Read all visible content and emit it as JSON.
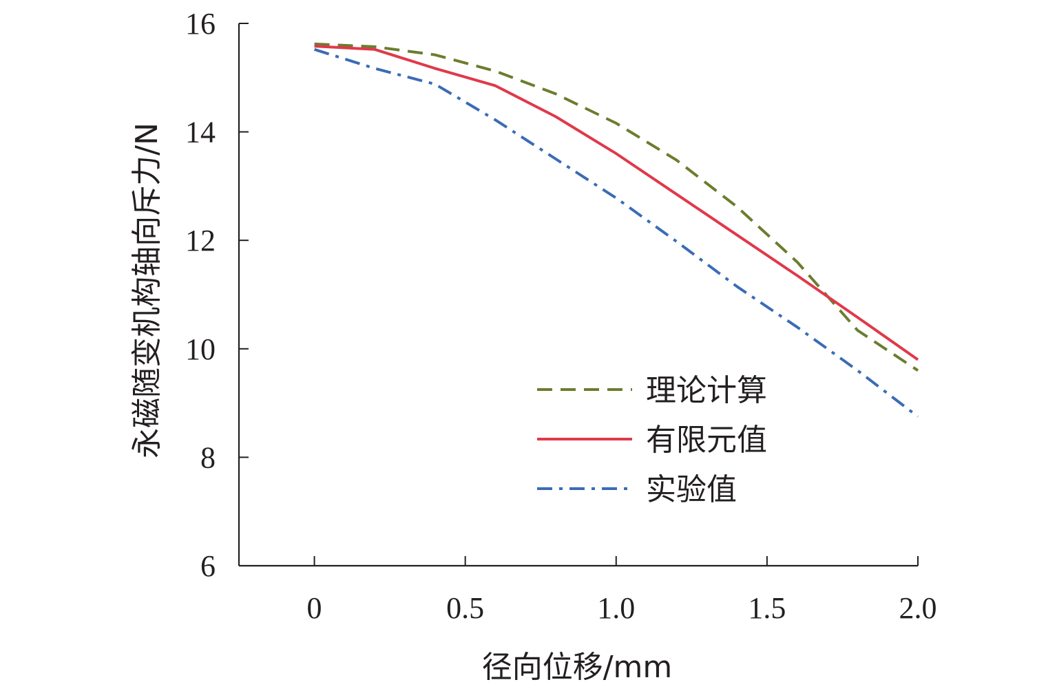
{
  "chart_data": {
    "type": "line",
    "title": "",
    "xlabel": "径向位移/mm",
    "ylabel": "永磁随变机构轴向斥力/N",
    "xlim": [
      -0.25,
      2.0
    ],
    "ylim": [
      6,
      16
    ],
    "xticks": [
      0,
      0.5,
      1.0,
      1.5,
      2.0
    ],
    "xtick_labels": [
      "0",
      "0.5",
      "1.0",
      "1.5",
      "2.0"
    ],
    "yticks": [
      6,
      8,
      10,
      12,
      14,
      16
    ],
    "ytick_labels": [
      "6",
      "8",
      "10",
      "12",
      "14",
      "16"
    ],
    "grid": false,
    "legend_position": "lower-right",
    "series": [
      {
        "name": "理论计算",
        "color": "#6b7d2e",
        "style": "dashed",
        "x": [
          0,
          0.2,
          0.4,
          0.6,
          0.8,
          1.0,
          1.2,
          1.4,
          1.6,
          1.8,
          2.0
        ],
        "y": [
          15.62,
          15.57,
          15.42,
          15.12,
          14.7,
          14.16,
          13.48,
          12.62,
          11.6,
          10.34,
          9.6
        ]
      },
      {
        "name": "有限元值",
        "color": "#e0394a",
        "style": "solid",
        "x": [
          0,
          0.2,
          0.4,
          0.6,
          0.8,
          1.0,
          1.2,
          1.4,
          1.6,
          1.8,
          2.0
        ],
        "y": [
          15.58,
          15.52,
          15.17,
          14.85,
          14.28,
          13.6,
          12.85,
          12.1,
          11.35,
          10.58,
          9.8
        ]
      },
      {
        "name": "实验值",
        "color": "#3a6cb6",
        "style": "dashdot",
        "x": [
          0,
          0.2,
          0.4,
          0.6,
          0.8,
          1.0,
          1.2,
          1.4,
          1.6,
          1.8,
          2.0
        ],
        "y": [
          15.52,
          15.17,
          14.88,
          14.22,
          13.5,
          12.78,
          11.98,
          11.15,
          10.4,
          9.6,
          8.75
        ]
      }
    ]
  }
}
